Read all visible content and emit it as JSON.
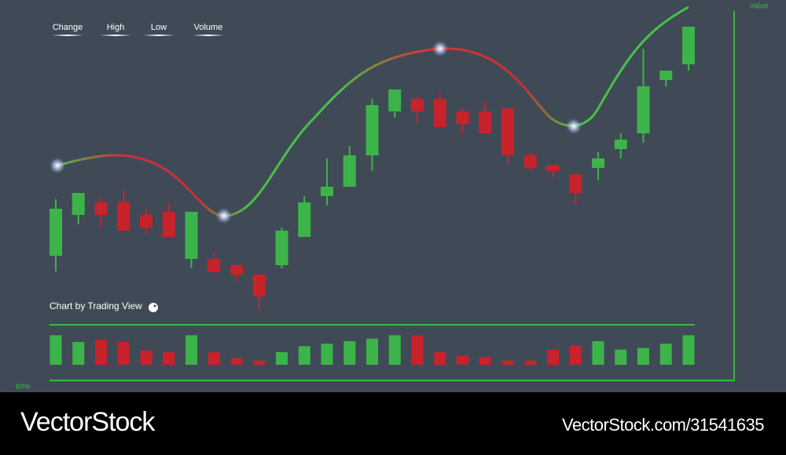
{
  "chart_data": {
    "type": "candlestick",
    "legend": [
      "Change",
      "High",
      "Low",
      "Volume"
    ],
    "annotation": "Chart by Trading View",
    "ylabel": "value",
    "xlabel": "time",
    "open": [
      21,
      34,
      38,
      38,
      34,
      35,
      20,
      20,
      18,
      15,
      18,
      27,
      40,
      43,
      53,
      67,
      71,
      71,
      67,
      67,
      68,
      53,
      50,
      47,
      49,
      55,
      60,
      77,
      82
    ],
    "high": [
      39,
      41,
      40,
      42,
      36,
      38,
      35,
      22,
      18,
      15,
      30,
      40,
      52,
      56,
      71,
      74,
      72,
      73,
      68,
      70,
      68,
      54,
      50,
      47,
      54,
      60,
      87,
      80,
      94
    ],
    "low": [
      16,
      31,
      30,
      29,
      28,
      27,
      17,
      15,
      13,
      4,
      17,
      27,
      37,
      43,
      48,
      65,
      63,
      62,
      60,
      60,
      50,
      48,
      46,
      37,
      45,
      52,
      57,
      75,
      80
    ],
    "close": [
      36,
      41,
      34,
      29,
      30,
      27,
      35,
      16,
      15,
      8,
      29,
      38,
      43,
      53,
      69,
      74,
      67,
      62,
      63,
      60,
      53,
      49,
      48,
      41,
      52,
      58,
      75,
      80,
      94
    ],
    "volume": [
      35,
      27,
      30,
      27,
      17,
      15,
      35,
      15,
      8,
      5,
      15,
      22,
      25,
      28,
      31,
      35,
      35,
      15,
      11,
      9,
      5,
      5,
      18,
      23,
      28,
      18,
      20,
      25,
      35
    ],
    "up_color": "#3cb44a",
    "down_color": "#c8222b",
    "ylim": [
      0,
      100
    ],
    "volume_ylim": [
      0,
      40
    ]
  },
  "watermark": {
    "brand": "VectorStock",
    "id": "VectorStock.com/31541635"
  }
}
